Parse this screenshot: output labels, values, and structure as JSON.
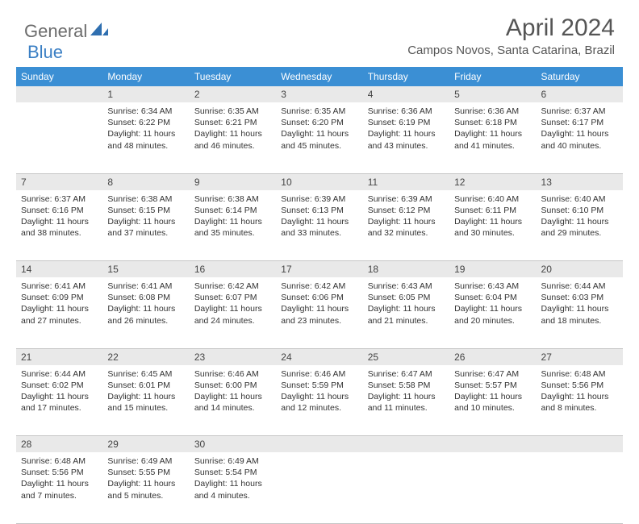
{
  "logo": {
    "part1": "General",
    "part2": "Blue"
  },
  "title": "April 2024",
  "location": "Campos Novos, Santa Catarina, Brazil",
  "day_headers": [
    "Sunday",
    "Monday",
    "Tuesday",
    "Wednesday",
    "Thursday",
    "Friday",
    "Saturday"
  ],
  "header_bg": "#3b8fd4",
  "header_fg": "#ffffff",
  "daynum_bg": "#e9e9e9",
  "weeks": [
    [
      null,
      {
        "n": "1",
        "sr": "Sunrise: 6:34 AM",
        "ss": "Sunset: 6:22 PM",
        "d1": "Daylight: 11 hours",
        "d2": "and 48 minutes."
      },
      {
        "n": "2",
        "sr": "Sunrise: 6:35 AM",
        "ss": "Sunset: 6:21 PM",
        "d1": "Daylight: 11 hours",
        "d2": "and 46 minutes."
      },
      {
        "n": "3",
        "sr": "Sunrise: 6:35 AM",
        "ss": "Sunset: 6:20 PM",
        "d1": "Daylight: 11 hours",
        "d2": "and 45 minutes."
      },
      {
        "n": "4",
        "sr": "Sunrise: 6:36 AM",
        "ss": "Sunset: 6:19 PM",
        "d1": "Daylight: 11 hours",
        "d2": "and 43 minutes."
      },
      {
        "n": "5",
        "sr": "Sunrise: 6:36 AM",
        "ss": "Sunset: 6:18 PM",
        "d1": "Daylight: 11 hours",
        "d2": "and 41 minutes."
      },
      {
        "n": "6",
        "sr": "Sunrise: 6:37 AM",
        "ss": "Sunset: 6:17 PM",
        "d1": "Daylight: 11 hours",
        "d2": "and 40 minutes."
      }
    ],
    [
      {
        "n": "7",
        "sr": "Sunrise: 6:37 AM",
        "ss": "Sunset: 6:16 PM",
        "d1": "Daylight: 11 hours",
        "d2": "and 38 minutes."
      },
      {
        "n": "8",
        "sr": "Sunrise: 6:38 AM",
        "ss": "Sunset: 6:15 PM",
        "d1": "Daylight: 11 hours",
        "d2": "and 37 minutes."
      },
      {
        "n": "9",
        "sr": "Sunrise: 6:38 AM",
        "ss": "Sunset: 6:14 PM",
        "d1": "Daylight: 11 hours",
        "d2": "and 35 minutes."
      },
      {
        "n": "10",
        "sr": "Sunrise: 6:39 AM",
        "ss": "Sunset: 6:13 PM",
        "d1": "Daylight: 11 hours",
        "d2": "and 33 minutes."
      },
      {
        "n": "11",
        "sr": "Sunrise: 6:39 AM",
        "ss": "Sunset: 6:12 PM",
        "d1": "Daylight: 11 hours",
        "d2": "and 32 minutes."
      },
      {
        "n": "12",
        "sr": "Sunrise: 6:40 AM",
        "ss": "Sunset: 6:11 PM",
        "d1": "Daylight: 11 hours",
        "d2": "and 30 minutes."
      },
      {
        "n": "13",
        "sr": "Sunrise: 6:40 AM",
        "ss": "Sunset: 6:10 PM",
        "d1": "Daylight: 11 hours",
        "d2": "and 29 minutes."
      }
    ],
    [
      {
        "n": "14",
        "sr": "Sunrise: 6:41 AM",
        "ss": "Sunset: 6:09 PM",
        "d1": "Daylight: 11 hours",
        "d2": "and 27 minutes."
      },
      {
        "n": "15",
        "sr": "Sunrise: 6:41 AM",
        "ss": "Sunset: 6:08 PM",
        "d1": "Daylight: 11 hours",
        "d2": "and 26 minutes."
      },
      {
        "n": "16",
        "sr": "Sunrise: 6:42 AM",
        "ss": "Sunset: 6:07 PM",
        "d1": "Daylight: 11 hours",
        "d2": "and 24 minutes."
      },
      {
        "n": "17",
        "sr": "Sunrise: 6:42 AM",
        "ss": "Sunset: 6:06 PM",
        "d1": "Daylight: 11 hours",
        "d2": "and 23 minutes."
      },
      {
        "n": "18",
        "sr": "Sunrise: 6:43 AM",
        "ss": "Sunset: 6:05 PM",
        "d1": "Daylight: 11 hours",
        "d2": "and 21 minutes."
      },
      {
        "n": "19",
        "sr": "Sunrise: 6:43 AM",
        "ss": "Sunset: 6:04 PM",
        "d1": "Daylight: 11 hours",
        "d2": "and 20 minutes."
      },
      {
        "n": "20",
        "sr": "Sunrise: 6:44 AM",
        "ss": "Sunset: 6:03 PM",
        "d1": "Daylight: 11 hours",
        "d2": "and 18 minutes."
      }
    ],
    [
      {
        "n": "21",
        "sr": "Sunrise: 6:44 AM",
        "ss": "Sunset: 6:02 PM",
        "d1": "Daylight: 11 hours",
        "d2": "and 17 minutes."
      },
      {
        "n": "22",
        "sr": "Sunrise: 6:45 AM",
        "ss": "Sunset: 6:01 PM",
        "d1": "Daylight: 11 hours",
        "d2": "and 15 minutes."
      },
      {
        "n": "23",
        "sr": "Sunrise: 6:46 AM",
        "ss": "Sunset: 6:00 PM",
        "d1": "Daylight: 11 hours",
        "d2": "and 14 minutes."
      },
      {
        "n": "24",
        "sr": "Sunrise: 6:46 AM",
        "ss": "Sunset: 5:59 PM",
        "d1": "Daylight: 11 hours",
        "d2": "and 12 minutes."
      },
      {
        "n": "25",
        "sr": "Sunrise: 6:47 AM",
        "ss": "Sunset: 5:58 PM",
        "d1": "Daylight: 11 hours",
        "d2": "and 11 minutes."
      },
      {
        "n": "26",
        "sr": "Sunrise: 6:47 AM",
        "ss": "Sunset: 5:57 PM",
        "d1": "Daylight: 11 hours",
        "d2": "and 10 minutes."
      },
      {
        "n": "27",
        "sr": "Sunrise: 6:48 AM",
        "ss": "Sunset: 5:56 PM",
        "d1": "Daylight: 11 hours",
        "d2": "and 8 minutes."
      }
    ],
    [
      {
        "n": "28",
        "sr": "Sunrise: 6:48 AM",
        "ss": "Sunset: 5:56 PM",
        "d1": "Daylight: 11 hours",
        "d2": "and 7 minutes."
      },
      {
        "n": "29",
        "sr": "Sunrise: 6:49 AM",
        "ss": "Sunset: 5:55 PM",
        "d1": "Daylight: 11 hours",
        "d2": "and 5 minutes."
      },
      {
        "n": "30",
        "sr": "Sunrise: 6:49 AM",
        "ss": "Sunset: 5:54 PM",
        "d1": "Daylight: 11 hours",
        "d2": "and 4 minutes."
      },
      null,
      null,
      null,
      null
    ]
  ]
}
